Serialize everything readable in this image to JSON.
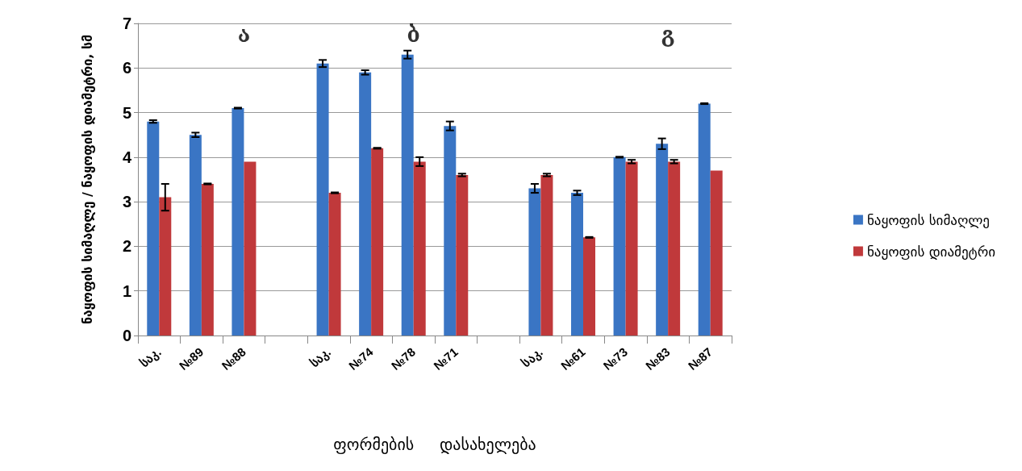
{
  "chart_data": {
    "type": "bar",
    "ylabel": "ნაყოფის სიმაღლე / ნაყოფის დიამეტრი, სმ",
    "xlabel": "ფორმების     დასახელება",
    "categories": [
      "საკ.",
      "№89",
      "№88",
      null,
      "საკ.",
      "№74",
      "№78",
      "№71",
      null,
      "საკ.",
      "№61",
      "№73",
      "№83",
      "№87"
    ],
    "series": [
      {
        "name": "ნაყოფის სიმაღლე",
        "color": "#3a75c4",
        "values": [
          4.8,
          4.5,
          5.1,
          null,
          6.1,
          5.9,
          6.3,
          4.7,
          null,
          3.3,
          3.2,
          4.0,
          4.3,
          5.2
        ],
        "errors": [
          0.03,
          0.05,
          0.01,
          null,
          0.08,
          0.05,
          0.09,
          0.1,
          null,
          0.1,
          0.05,
          0.01,
          0.12,
          0.01
        ]
      },
      {
        "name": "ნაყოფის დიამეტრი",
        "color": "#c0393b",
        "values": [
          3.1,
          3.4,
          3.9,
          null,
          3.2,
          4.2,
          3.9,
          3.6,
          null,
          3.6,
          2.2,
          3.9,
          3.9,
          3.7
        ],
        "errors": [
          0.3,
          0.01,
          null,
          null,
          0.01,
          0.01,
          0.1,
          0.03,
          null,
          0.03,
          0.01,
          0.04,
          0.04,
          null
        ]
      }
    ],
    "annotations": [
      "ა",
      "ბ",
      "გ"
    ],
    "ylim": [
      0,
      7
    ],
    "yticks": [
      0,
      1,
      2,
      3,
      4,
      5,
      6,
      7
    ],
    "grid": "y",
    "legend": "right"
  }
}
